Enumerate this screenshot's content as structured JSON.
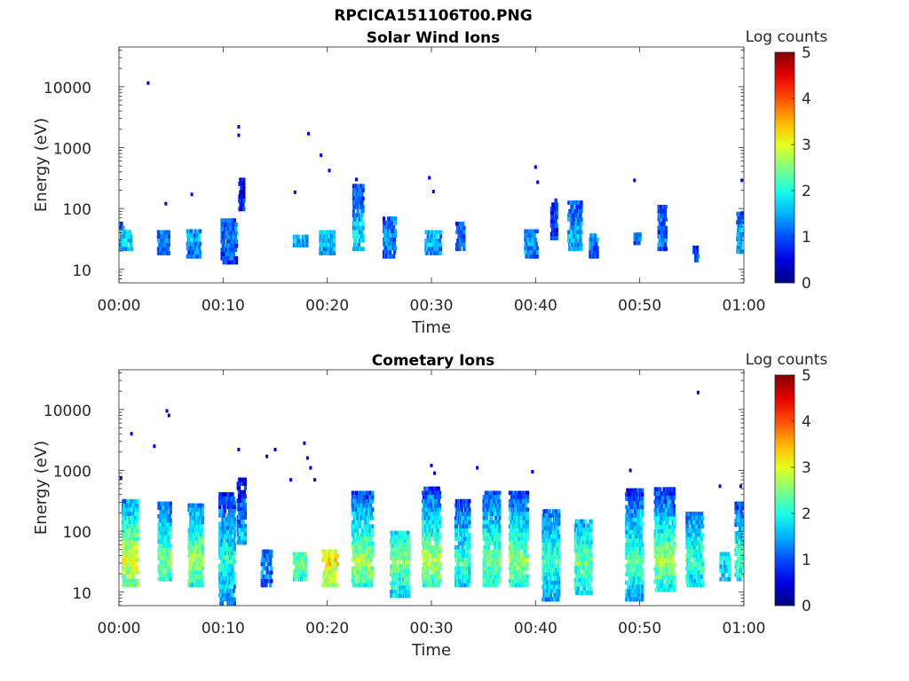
{
  "figure": {
    "title": "RPCICA151106T00.PNG"
  },
  "colorbar": {
    "label": "Log counts",
    "ticks": [
      "0",
      "1",
      "2",
      "3",
      "4",
      "5"
    ],
    "colormap": "jet",
    "range": [
      0,
      5
    ]
  },
  "chart_data": [
    {
      "type": "heatmap",
      "title": "Solar Wind Ions",
      "xlabel": "Time",
      "ylabel": "Energy (eV)",
      "x_tick_labels": [
        "00:00",
        "00:10",
        "00:20",
        "00:30",
        "00:40",
        "00:50",
        "01:00"
      ],
      "x_range_minutes": [
        0,
        60
      ],
      "y_scale": "log",
      "y_range_eV": [
        6,
        45000
      ],
      "y_tick_labels": [
        "10",
        "100",
        "1000",
        "10000"
      ],
      "y_tick_values": [
        10,
        100,
        1000,
        10000
      ],
      "blobs": [
        {
          "t": 0.1,
          "w": 0.5,
          "e_lo": 20,
          "e_hi": 60,
          "level": 1.2
        },
        {
          "t": 0.7,
          "w": 1.0,
          "e_lo": 20,
          "e_hi": 40,
          "level": 1.6
        },
        {
          "t": 4.2,
          "w": 1.1,
          "e_lo": 17,
          "e_hi": 40,
          "level": 1.1
        },
        {
          "t": 7.1,
          "w": 1.3,
          "e_lo": 15,
          "e_hi": 45,
          "level": 1.3
        },
        {
          "t": 10.5,
          "w": 1.5,
          "e_lo": 12,
          "e_hi": 60,
          "level": 1.1
        },
        {
          "t": 11.7,
          "w": 0.5,
          "e_lo": 90,
          "e_hi": 300,
          "level": 0.9
        },
        {
          "t": 17.3,
          "w": 1.4,
          "e_lo": 23,
          "e_hi": 35,
          "level": 1.4
        },
        {
          "t": 19.9,
          "w": 1.4,
          "e_lo": 17,
          "e_hi": 40,
          "level": 1.5
        },
        {
          "t": 22.9,
          "w": 1.0,
          "e_lo": 20,
          "e_hi": 250,
          "level": 1.6
        },
        {
          "t": 25.9,
          "w": 1.2,
          "e_lo": 15,
          "e_hi": 70,
          "level": 1.2
        },
        {
          "t": 30.1,
          "w": 1.5,
          "e_lo": 17,
          "e_hi": 40,
          "level": 1.4
        },
        {
          "t": 32.7,
          "w": 0.8,
          "e_lo": 20,
          "e_hi": 60,
          "level": 1.0
        },
        {
          "t": 39.5,
          "w": 1.2,
          "e_lo": 15,
          "e_hi": 40,
          "level": 1.3
        },
        {
          "t": 41.7,
          "w": 0.6,
          "e_lo": 30,
          "e_hi": 130,
          "level": 0.9
        },
        {
          "t": 43.7,
          "w": 1.3,
          "e_lo": 20,
          "e_hi": 120,
          "level": 1.4
        },
        {
          "t": 45.5,
          "w": 0.8,
          "e_lo": 15,
          "e_hi": 35,
          "level": 1.1
        },
        {
          "t": 49.7,
          "w": 0.6,
          "e_lo": 25,
          "e_hi": 40,
          "level": 1.0
        },
        {
          "t": 52.1,
          "w": 0.8,
          "e_lo": 20,
          "e_hi": 100,
          "level": 1.1
        },
        {
          "t": 55.3,
          "w": 0.5,
          "e_lo": 13,
          "e_hi": 23,
          "level": 0.9
        },
        {
          "t": 59.6,
          "w": 0.7,
          "e_lo": 18,
          "e_hi": 80,
          "level": 1.4
        }
      ],
      "points": [
        {
          "t": 2.8,
          "e": 11500
        },
        {
          "t": 11.5,
          "e": 2200
        },
        {
          "t": 11.5,
          "e": 1600
        },
        {
          "t": 18.2,
          "e": 1700
        },
        {
          "t": 19.4,
          "e": 750
        },
        {
          "t": 20.2,
          "e": 420
        },
        {
          "t": 16.9,
          "e": 185
        },
        {
          "t": 7.0,
          "e": 170
        },
        {
          "t": 4.5,
          "e": 120
        },
        {
          "t": 22.8,
          "e": 300
        },
        {
          "t": 29.8,
          "e": 320
        },
        {
          "t": 30.2,
          "e": 190
        },
        {
          "t": 40.0,
          "e": 480
        },
        {
          "t": 40.2,
          "e": 270
        },
        {
          "t": 49.5,
          "e": 290
        },
        {
          "t": 59.8,
          "e": 290
        }
      ]
    },
    {
      "type": "heatmap",
      "title": "Cometary Ions",
      "xlabel": "Time",
      "ylabel": "Energy (eV)",
      "x_tick_labels": [
        "00:00",
        "00:10",
        "00:20",
        "00:30",
        "00:40",
        "00:50",
        "01:00"
      ],
      "x_range_minutes": [
        0,
        60
      ],
      "y_scale": "log",
      "y_range_eV": [
        6,
        45000
      ],
      "y_tick_labels": [
        "10",
        "100",
        "1000",
        "10000"
      ],
      "y_tick_values": [
        10,
        100,
        1000,
        10000
      ],
      "blobs": [
        {
          "t": 1.0,
          "w": 1.5,
          "e_lo": 12,
          "e_hi": 300,
          "level": 2.8
        },
        {
          "t": 4.3,
          "w": 1.2,
          "e_lo": 15,
          "e_hi": 300,
          "level": 2.3
        },
        {
          "t": 7.3,
          "w": 1.4,
          "e_lo": 12,
          "e_hi": 250,
          "level": 2.4
        },
        {
          "t": 10.3,
          "w": 1.5,
          "e_lo": 6,
          "e_hi": 400,
          "level": 1.9
        },
        {
          "t": 11.7,
          "w": 0.8,
          "e_lo": 60,
          "e_hi": 700,
          "level": 1.8
        },
        {
          "t": 14.1,
          "w": 1.0,
          "e_lo": 12,
          "e_hi": 50,
          "level": 1.2
        },
        {
          "t": 17.3,
          "w": 1.2,
          "e_lo": 15,
          "e_hi": 40,
          "level": 2.2
        },
        {
          "t": 20.2,
          "w": 1.5,
          "e_lo": 12,
          "e_hi": 45,
          "level": 2.9
        },
        {
          "t": 23.3,
          "w": 2.0,
          "e_lo": 12,
          "e_hi": 400,
          "level": 2.5
        },
        {
          "t": 26.9,
          "w": 1.8,
          "e_lo": 8,
          "e_hi": 100,
          "level": 2.3
        },
        {
          "t": 29.9,
          "w": 1.7,
          "e_lo": 12,
          "e_hi": 500,
          "level": 2.5
        },
        {
          "t": 32.9,
          "w": 1.4,
          "e_lo": 12,
          "e_hi": 300,
          "level": 2.0
        },
        {
          "t": 35.7,
          "w": 1.6,
          "e_lo": 12,
          "e_hi": 400,
          "level": 2.3
        },
        {
          "t": 38.3,
          "w": 1.8,
          "e_lo": 12,
          "e_hi": 400,
          "level": 2.4
        },
        {
          "t": 41.4,
          "w": 1.6,
          "e_lo": 7,
          "e_hi": 200,
          "level": 2.0
        },
        {
          "t": 44.5,
          "w": 1.6,
          "e_lo": 9,
          "e_hi": 150,
          "level": 2.2
        },
        {
          "t": 49.4,
          "w": 1.6,
          "e_lo": 7,
          "e_hi": 500,
          "level": 2.1
        },
        {
          "t": 52.3,
          "w": 1.9,
          "e_lo": 10,
          "e_hi": 500,
          "level": 2.4
        },
        {
          "t": 55.2,
          "w": 1.6,
          "e_lo": 12,
          "e_hi": 200,
          "level": 2.0
        },
        {
          "t": 58.1,
          "w": 0.9,
          "e_lo": 15,
          "e_hi": 40,
          "level": 1.7
        },
        {
          "t": 59.5,
          "w": 0.8,
          "e_lo": 15,
          "e_hi": 300,
          "level": 2.0
        }
      ],
      "points": [
        {
          "t": 1.2,
          "e": 4000
        },
        {
          "t": 3.4,
          "e": 2500
        },
        {
          "t": 4.6,
          "e": 9500
        },
        {
          "t": 4.8,
          "e": 8000
        },
        {
          "t": 11.5,
          "e": 2200
        },
        {
          "t": 14.2,
          "e": 1700
        },
        {
          "t": 15.0,
          "e": 2200
        },
        {
          "t": 16.5,
          "e": 700
        },
        {
          "t": 17.8,
          "e": 2800
        },
        {
          "t": 18.1,
          "e": 1600
        },
        {
          "t": 18.4,
          "e": 1100
        },
        {
          "t": 18.8,
          "e": 700
        },
        {
          "t": 0.2,
          "e": 750
        },
        {
          "t": 30.0,
          "e": 1200
        },
        {
          "t": 30.3,
          "e": 900
        },
        {
          "t": 34.4,
          "e": 1100
        },
        {
          "t": 39.7,
          "e": 950
        },
        {
          "t": 49.1,
          "e": 1000
        },
        {
          "t": 55.6,
          "e": 19000
        },
        {
          "t": 57.7,
          "e": 550
        },
        {
          "t": 59.7,
          "e": 550
        }
      ]
    }
  ]
}
